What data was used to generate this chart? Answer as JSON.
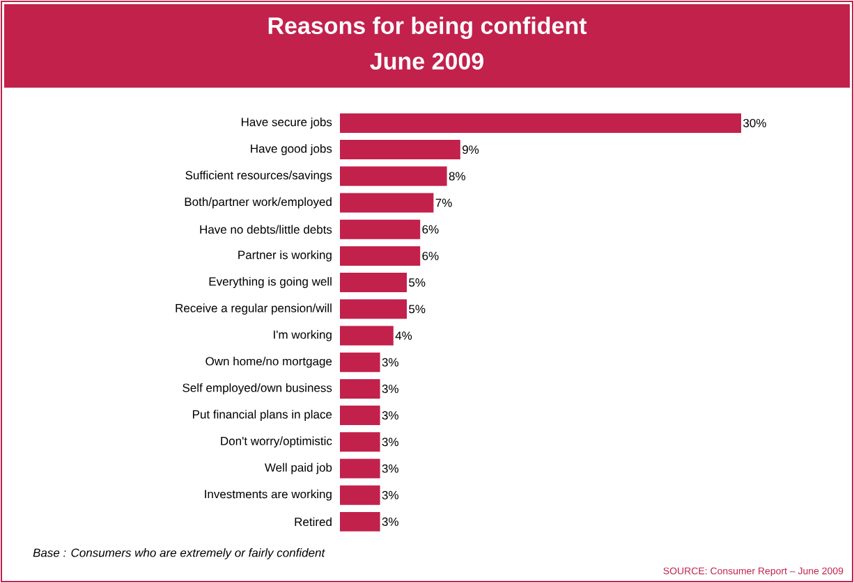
{
  "chart_data": {
    "type": "bar",
    "orientation": "horizontal",
    "title": "Reasons for being confident",
    "subtitle": "June 2009",
    "categories": [
      "Have secure jobs",
      "Have good jobs",
      "Sufficient resources/savings",
      "Both/partner work/employed",
      "Have no debts/little debts",
      "Partner is working",
      "Everything is going well",
      "Receive a regular pension/will",
      "I'm working",
      "Own home/no mortgage",
      "Self employed/own business",
      "Put financial plans in place",
      "Don't worry/optimistic",
      "Well paid job",
      "Investments are working",
      "Retired"
    ],
    "values": [
      30,
      9,
      8,
      7,
      6,
      6,
      5,
      5,
      4,
      3,
      3,
      3,
      3,
      3,
      3,
      3
    ],
    "value_labels": [
      "30%",
      "9%",
      "8%",
      "7%",
      "6%",
      "6%",
      "5%",
      "5%",
      "4%",
      "3%",
      "3%",
      "3%",
      "3%",
      "3%",
      "3%",
      "3%"
    ],
    "color": "#c2214c",
    "tick_labels": "y",
    "annotations": [
      "*Base : Consumers who are extremely or fairly confident*",
      "SOURCE: Consumer Report – June 2009"
    ]
  }
}
